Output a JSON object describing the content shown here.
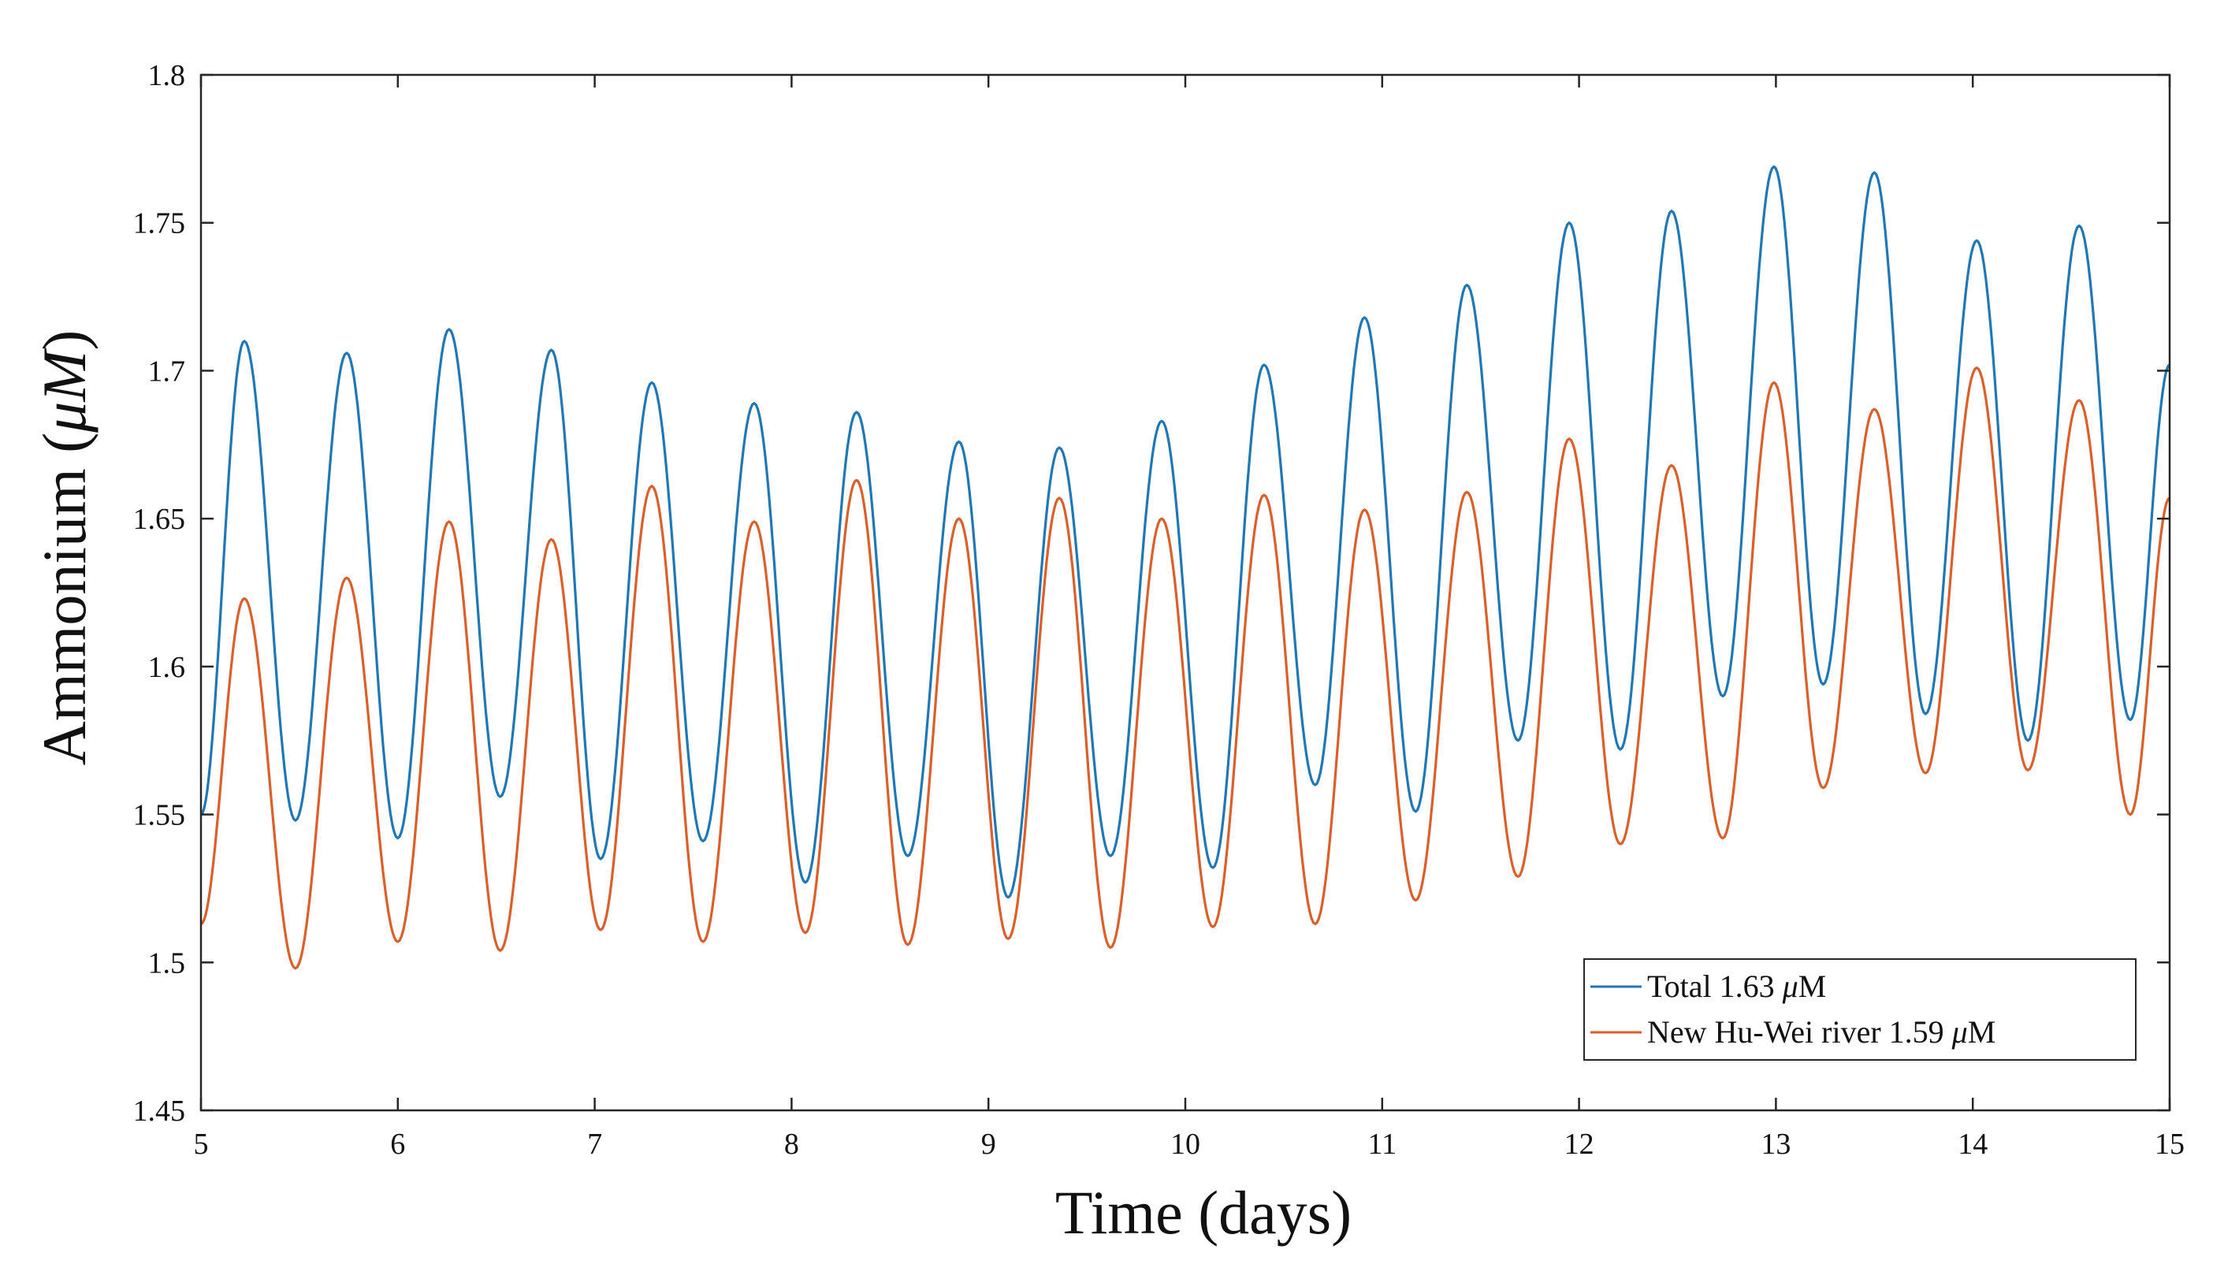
{
  "chart_data": {
    "type": "line",
    "title": "",
    "xlabel": "Time (days)",
    "ylabel_main": "Ammonium (",
    "ylabel_unit": "μM",
    "ylabel_close": ")",
    "xlim": [
      5,
      15
    ],
    "ylim": [
      1.45,
      1.8
    ],
    "xticks": [
      5,
      6,
      7,
      8,
      9,
      10,
      11,
      12,
      13,
      14,
      15
    ],
    "xtick_labels": [
      "5",
      "6",
      "7",
      "8",
      "9",
      "10",
      "11",
      "12",
      "13",
      "14",
      "15"
    ],
    "yticks": [
      1.45,
      1.5,
      1.55,
      1.6,
      1.65,
      1.7,
      1.75,
      1.8
    ],
    "ytick_labels": [
      "1.45",
      "1.5",
      "1.55",
      "1.6",
      "1.65",
      "1.7",
      "1.75",
      "1.8"
    ],
    "grid": false,
    "legend_position": "bottom-right",
    "period_days": 0.518,
    "series": [
      {
        "name": "Total",
        "legend_prefix": "Total 1.63 ",
        "legend_unit_symbol": "μ",
        "legend_unit_rest": "M",
        "color": "#1f77b4",
        "start": [
          5.0,
          1.55
        ],
        "end": [
          15.0,
          1.702
        ],
        "peaks": [
          [
            5.22,
            1.71
          ],
          [
            5.74,
            1.706
          ],
          [
            6.26,
            1.714
          ],
          [
            6.78,
            1.707
          ],
          [
            7.29,
            1.696
          ],
          [
            7.81,
            1.689
          ],
          [
            8.33,
            1.686
          ],
          [
            8.85,
            1.676
          ],
          [
            9.36,
            1.674
          ],
          [
            9.88,
            1.683
          ],
          [
            10.4,
            1.702
          ],
          [
            10.91,
            1.718
          ],
          [
            11.43,
            1.729
          ],
          [
            11.95,
            1.75
          ],
          [
            12.47,
            1.754
          ],
          [
            12.99,
            1.769
          ],
          [
            13.5,
            1.767
          ],
          [
            14.02,
            1.744
          ],
          [
            14.54,
            1.749
          ]
        ],
        "troughs": [
          [
            5.48,
            1.548
          ],
          [
            6.0,
            1.542
          ],
          [
            6.52,
            1.556
          ],
          [
            7.03,
            1.535
          ],
          [
            7.55,
            1.541
          ],
          [
            8.07,
            1.527
          ],
          [
            8.59,
            1.536
          ],
          [
            9.1,
            1.522
          ],
          [
            9.62,
            1.536
          ],
          [
            10.14,
            1.532
          ],
          [
            10.66,
            1.56
          ],
          [
            11.17,
            1.551
          ],
          [
            11.69,
            1.575
          ],
          [
            12.21,
            1.572
          ],
          [
            12.73,
            1.59
          ],
          [
            13.24,
            1.594
          ],
          [
            13.76,
            1.584
          ],
          [
            14.28,
            1.575
          ],
          [
            14.8,
            1.582
          ]
        ]
      },
      {
        "name": "New Hu-Wei river",
        "legend_prefix": "New Hu-Wei river 1.59 ",
        "legend_unit_symbol": "μ",
        "legend_unit_rest": "M",
        "color": "#d95f2b",
        "start": [
          5.0,
          1.513
        ],
        "end": [
          15.0,
          1.657
        ],
        "peaks": [
          [
            5.22,
            1.623
          ],
          [
            5.74,
            1.63
          ],
          [
            6.26,
            1.649
          ],
          [
            6.78,
            1.643
          ],
          [
            7.29,
            1.661
          ],
          [
            7.81,
            1.649
          ],
          [
            8.33,
            1.663
          ],
          [
            8.85,
            1.65
          ],
          [
            9.36,
            1.657
          ],
          [
            9.88,
            1.65
          ],
          [
            10.4,
            1.658
          ],
          [
            10.91,
            1.653
          ],
          [
            11.43,
            1.659
          ],
          [
            11.95,
            1.677
          ],
          [
            12.47,
            1.668
          ],
          [
            12.99,
            1.696
          ],
          [
            13.5,
            1.687
          ],
          [
            14.02,
            1.701
          ],
          [
            14.54,
            1.69
          ]
        ],
        "troughs": [
          [
            5.48,
            1.498
          ],
          [
            6.0,
            1.507
          ],
          [
            6.52,
            1.504
          ],
          [
            7.03,
            1.511
          ],
          [
            7.55,
            1.507
          ],
          [
            8.07,
            1.51
          ],
          [
            8.59,
            1.506
          ],
          [
            9.1,
            1.508
          ],
          [
            9.62,
            1.505
          ],
          [
            10.14,
            1.512
          ],
          [
            10.66,
            1.513
          ],
          [
            11.17,
            1.521
          ],
          [
            11.69,
            1.529
          ],
          [
            12.21,
            1.54
          ],
          [
            12.73,
            1.542
          ],
          [
            13.24,
            1.559
          ],
          [
            13.76,
            1.564
          ],
          [
            14.28,
            1.565
          ],
          [
            14.8,
            1.55
          ]
        ]
      }
    ]
  }
}
